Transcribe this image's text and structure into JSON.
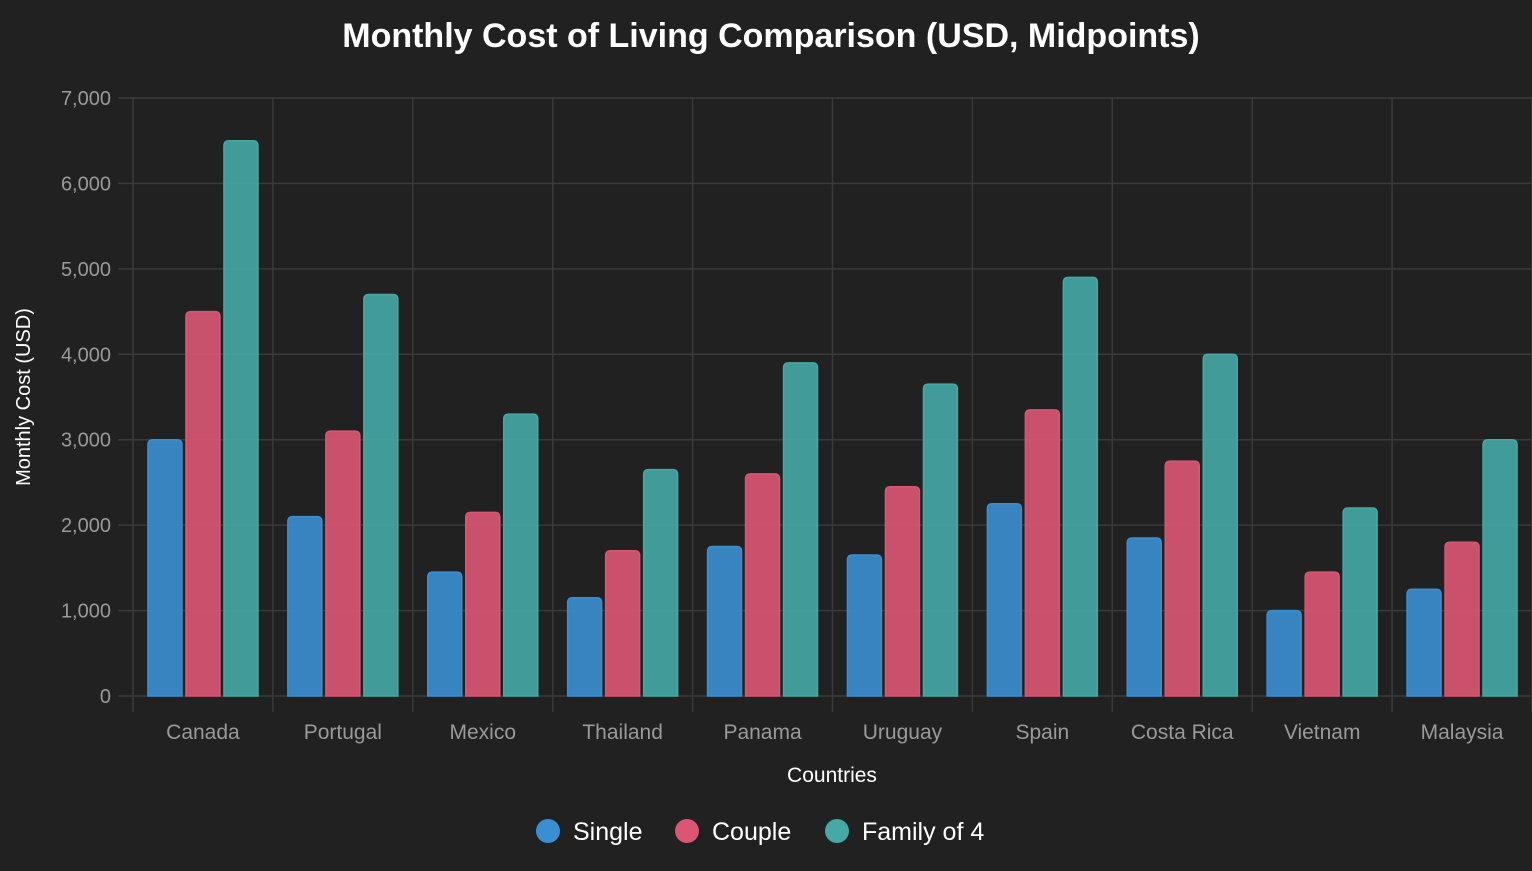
{
  "chart_data": {
    "type": "bar",
    "title": "Monthly Cost of Living Comparison (USD, Midpoints)",
    "xlabel": "Countries",
    "ylabel": "Monthly Cost (USD)",
    "ylim": [
      0,
      7000
    ],
    "yticks": [
      "0",
      "1,000",
      "2,000",
      "3,000",
      "4,000",
      "5,000",
      "6,000",
      "7,000"
    ],
    "grid": true,
    "legend_position": "bottom",
    "categories": [
      "Canada",
      "Portugal",
      "Mexico",
      "Thailand",
      "Panama",
      "Uruguay",
      "Spain",
      "Costa Rica",
      "Vietnam",
      "Malaysia"
    ],
    "series": [
      {
        "name": "Single",
        "color": "#3a8fd3",
        "values": [
          3000,
          2100,
          1450,
          1150,
          1750,
          1650,
          2250,
          1850,
          1000,
          1250
        ]
      },
      {
        "name": "Couple",
        "color": "#db5673",
        "values": [
          4500,
          3100,
          2150,
          1700,
          2600,
          2450,
          3350,
          2750,
          1450,
          1800
        ]
      },
      {
        "name": "Family of 4",
        "color": "#45a9a6",
        "values": [
          6500,
          4700,
          3300,
          2650,
          3900,
          3650,
          4900,
          4000,
          2200,
          3000
        ]
      }
    ]
  }
}
